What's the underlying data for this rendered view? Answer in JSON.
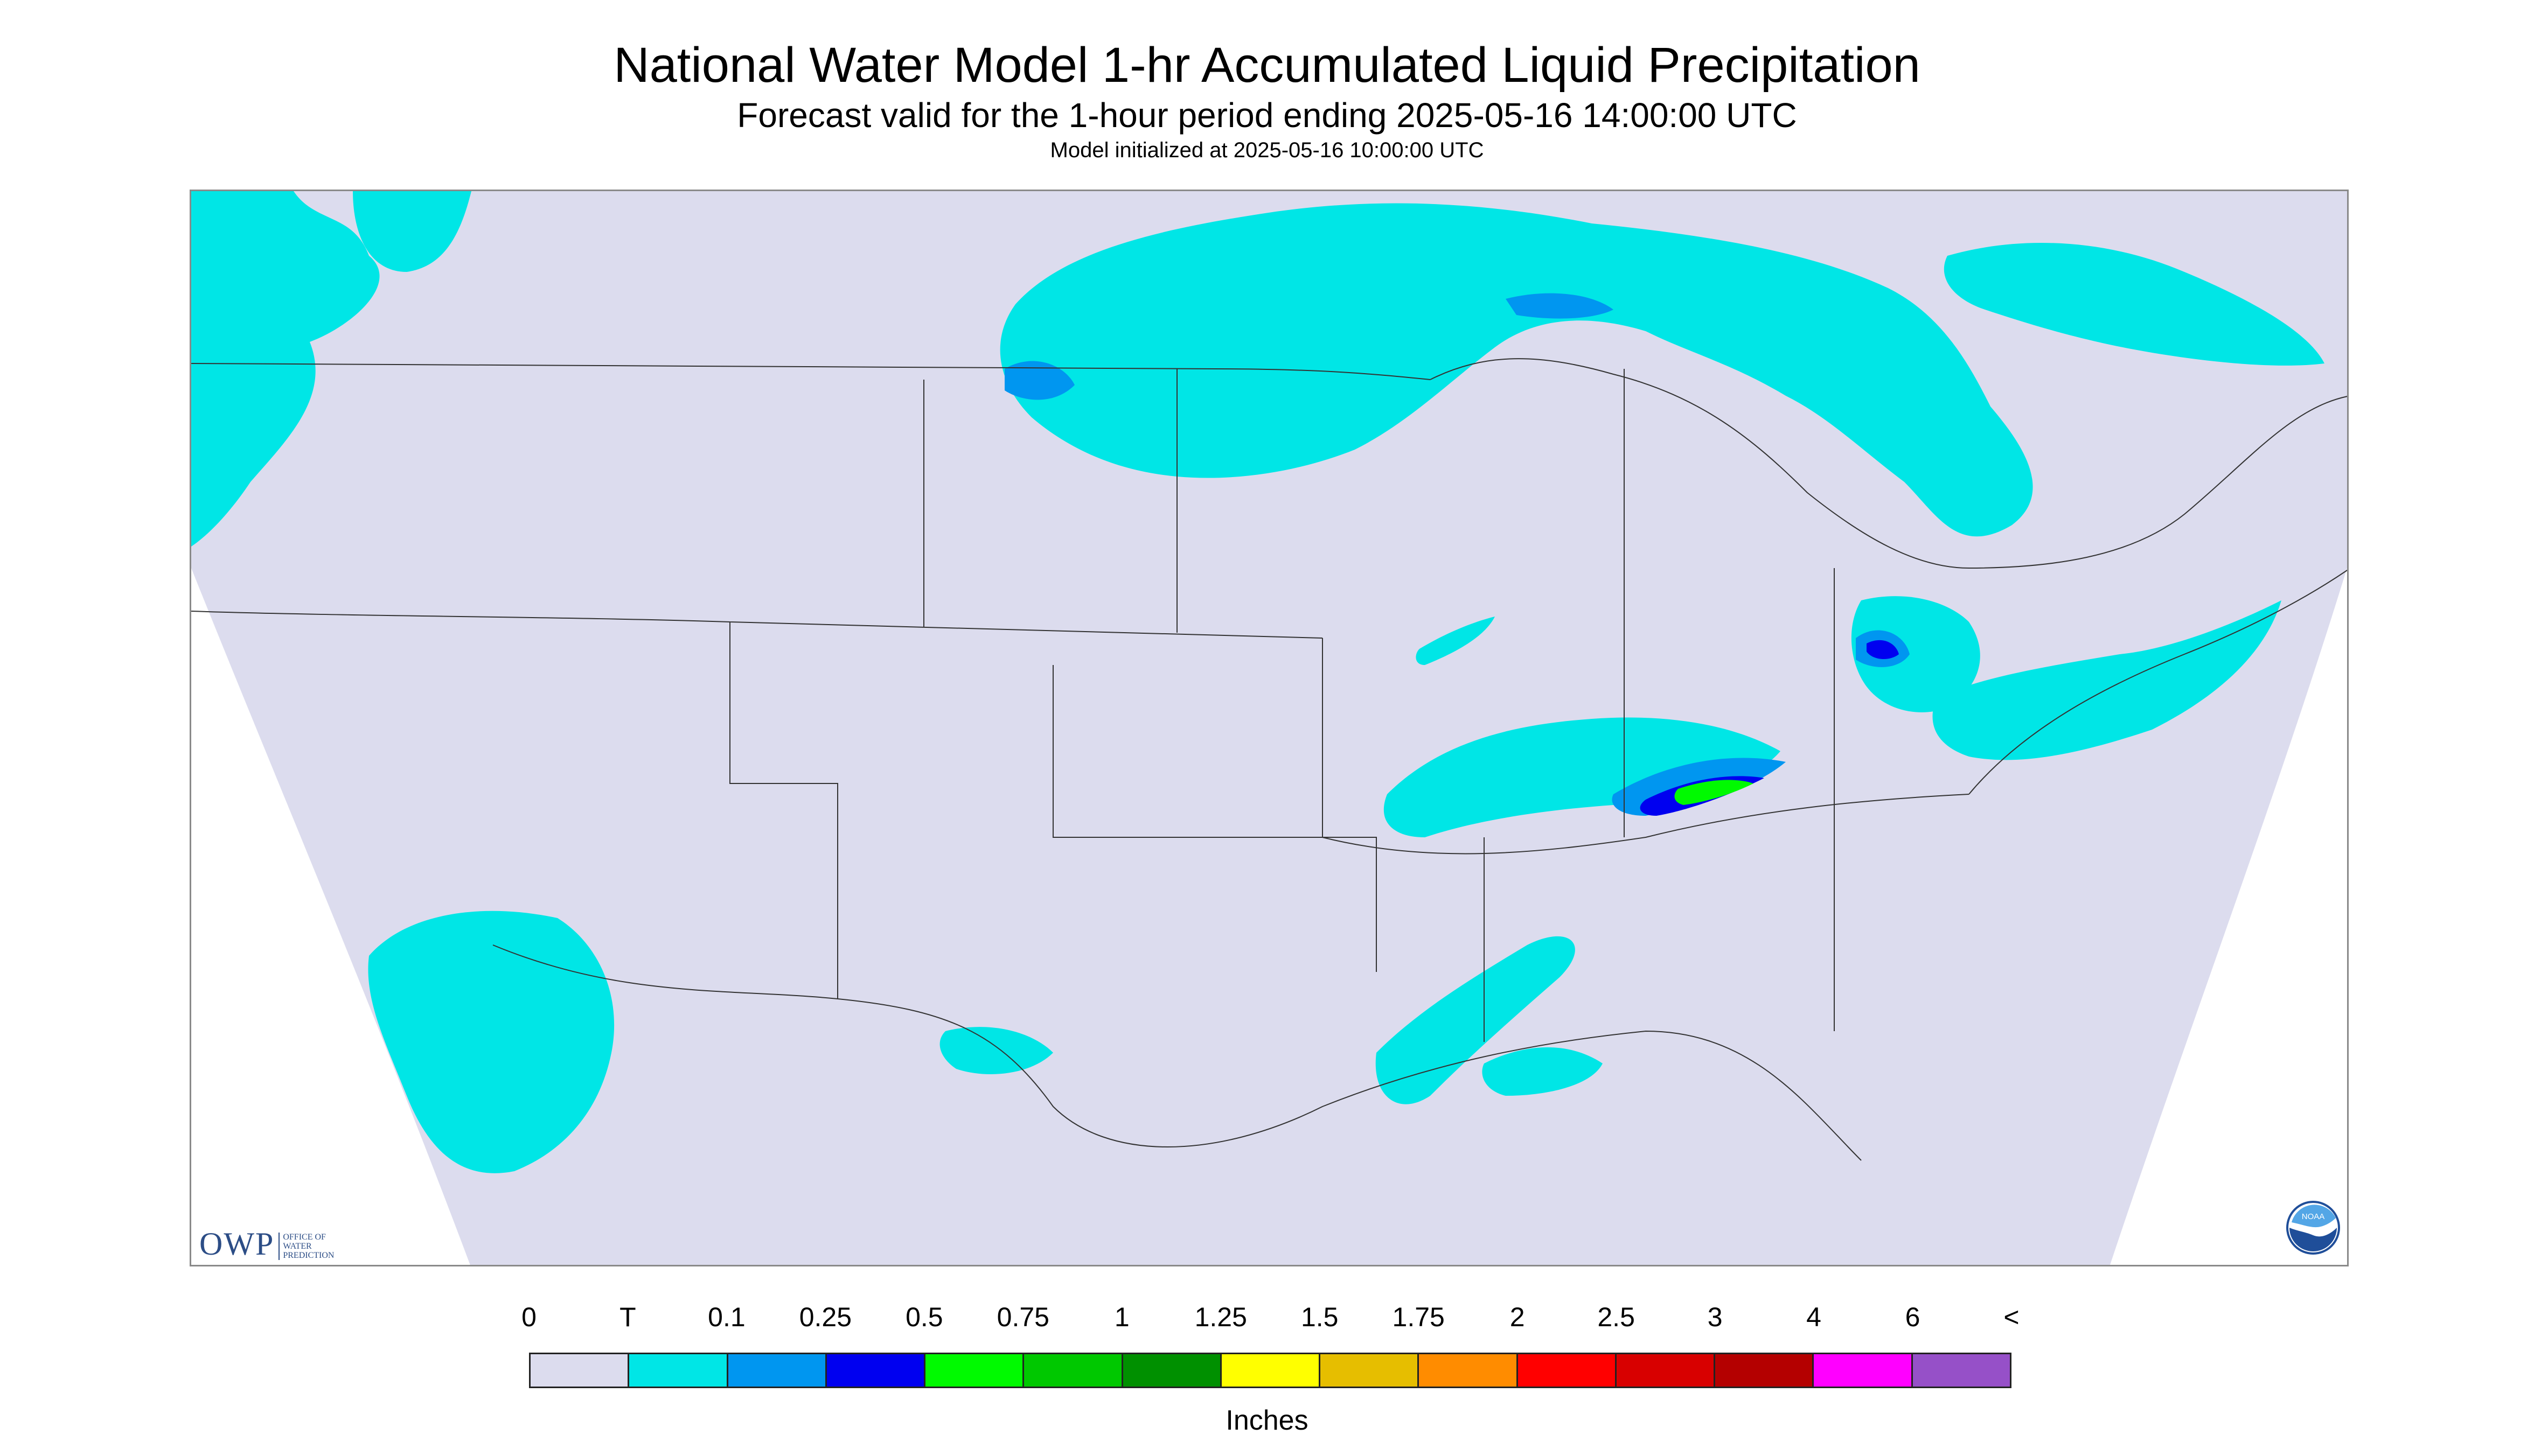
{
  "title": "National Water Model 1-hr Accumulated Liquid Precipitation",
  "subtitle": "Forecast valid for the 1-hour period ending 2025-05-16 14:00:00 UTC",
  "init_line": "Model initialized at 2025-05-16 10:00:00 UTC",
  "logos": {
    "owp_letters": "OWP",
    "owp_text_lines": [
      "OFFICE OF",
      "WATER",
      "PREDICTION"
    ],
    "noaa_text": "NOAA"
  },
  "legend": {
    "labels": [
      "0",
      "T",
      "0.1",
      "0.25",
      "0.5",
      "0.75",
      "1",
      "1.25",
      "1.5",
      "1.75",
      "2",
      "2.5",
      "3",
      "4",
      "6",
      "<"
    ],
    "colors": [
      "#dcdcee",
      "#00e6e6",
      "#0096f0",
      "#0000f0",
      "#00fa00",
      "#00c800",
      "#009000",
      "#ffff00",
      "#e6be00",
      "#ff8c00",
      "#ff0000",
      "#d80000",
      "#b40000",
      "#ff00ff",
      "#9650c8"
    ],
    "units": "Inches"
  },
  "map_colors": {
    "domain": "#dcdcee",
    "outside": "#ffffff",
    "trace": "#00e6e6",
    "light": "#0096f0",
    "moderate": "#0000f0",
    "heavy": "#00fa00",
    "heavier": "#00c800",
    "boundary": "#333333"
  }
}
